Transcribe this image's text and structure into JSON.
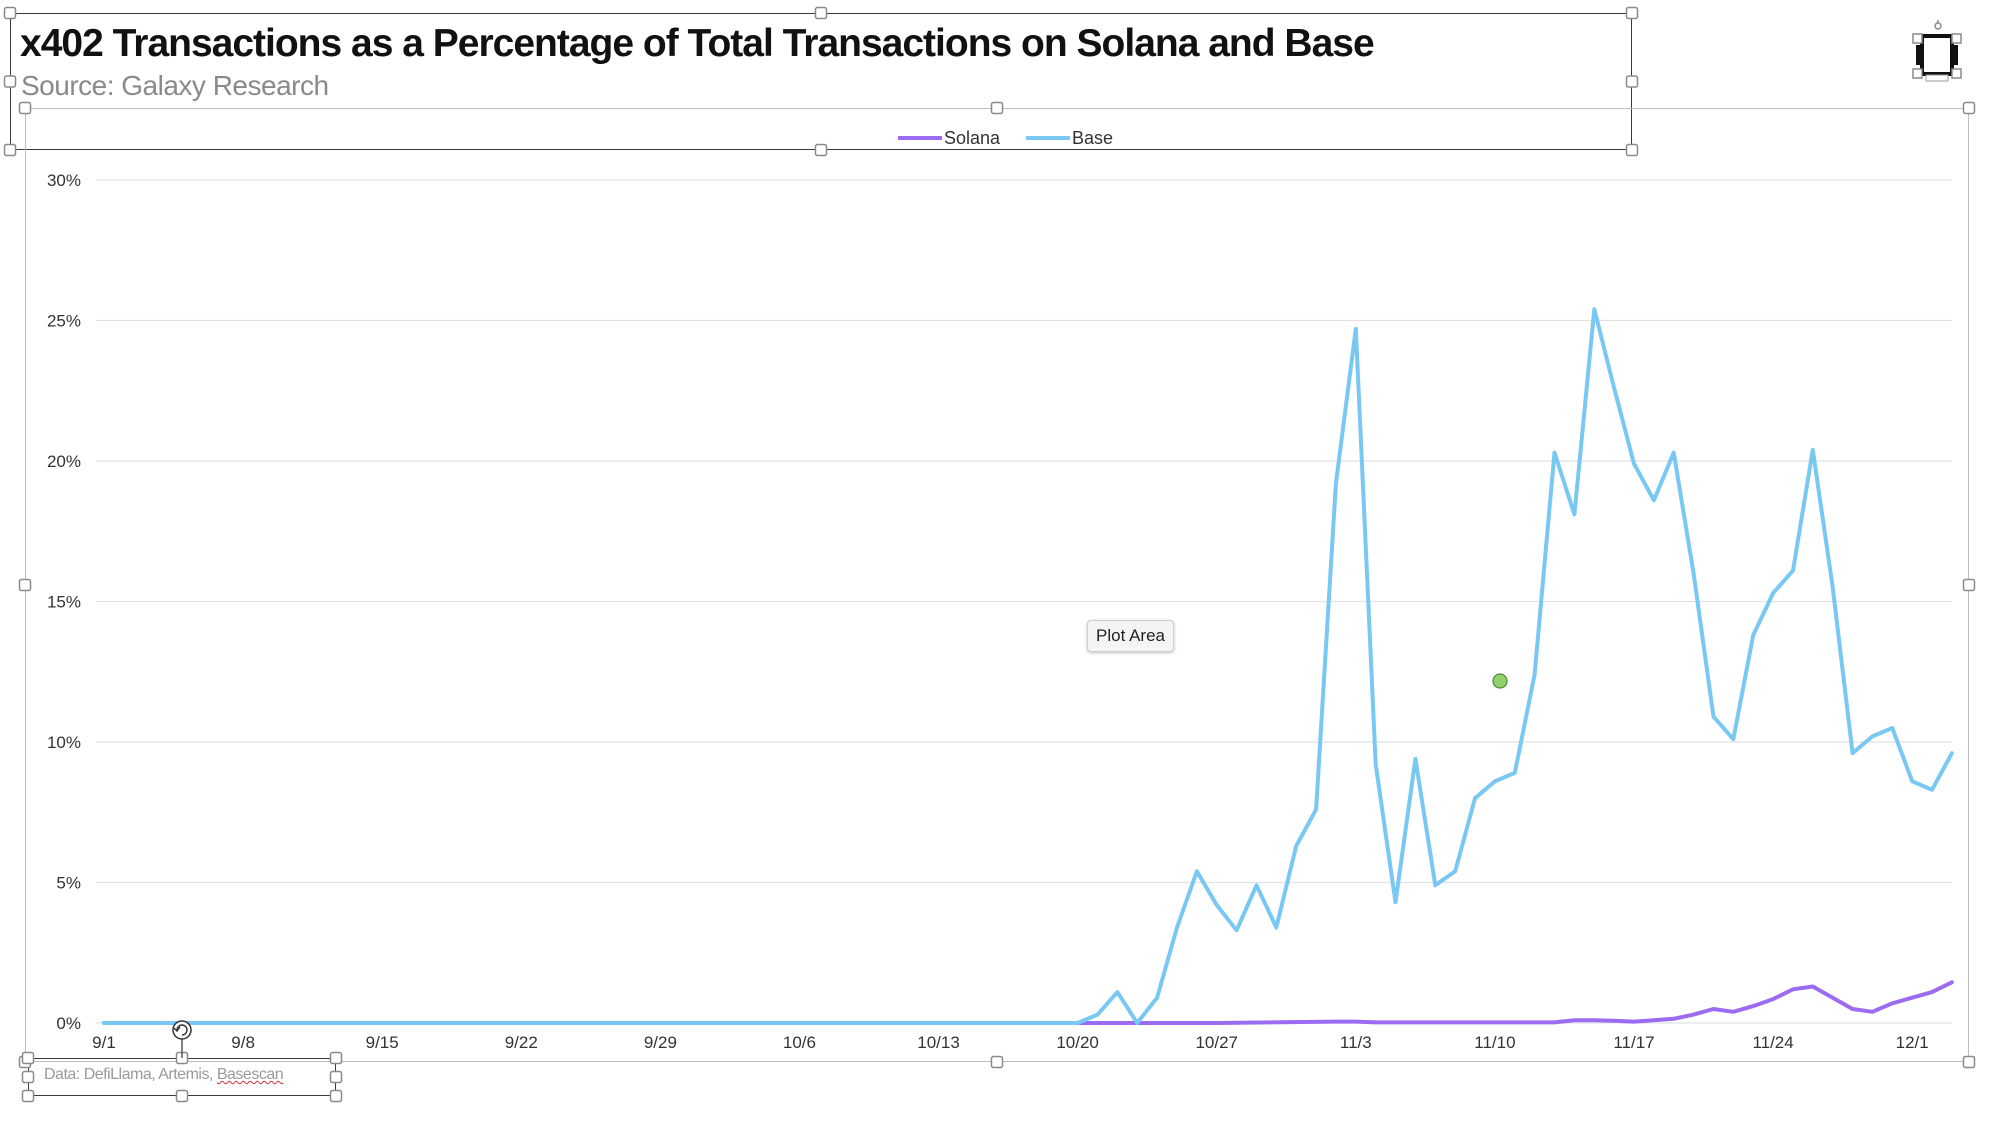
{
  "header": {
    "title": "x402 Transactions as a Percentage of Total Transactions on Solana and Base",
    "subtitle": "Source: Galaxy Research"
  },
  "footnote": {
    "prefix": "Data: DefiLlama, Artemis, ",
    "underlined": "Basescan"
  },
  "tooltip": {
    "label": "Plot Area"
  },
  "colors": {
    "solana": "#9b6cf2",
    "base": "#79c8f4",
    "grid": "#e2e2e2",
    "axis_text": "#333333",
    "selection_dot": "#8fd16b"
  },
  "chart_data": {
    "type": "line",
    "x_start": "9/1",
    "x_end": "12/3",
    "x_ticks": [
      "9/1",
      "9/8",
      "9/15",
      "9/22",
      "9/29",
      "10/6",
      "10/13",
      "10/20",
      "10/27",
      "11/3",
      "11/10",
      "11/17",
      "11/24",
      "12/1"
    ],
    "y_ticks": [
      "0%",
      "5%",
      "10%",
      "15%",
      "20%",
      "25%",
      "30%"
    ],
    "ylim": [
      0,
      30
    ],
    "y_unit": "%",
    "legend": "top-center",
    "grid": "horizontal",
    "title": "",
    "xlabel": "",
    "ylabel": "",
    "series": [
      {
        "name": "Solana",
        "color": "#9b6cf2",
        "points": [
          [
            "9/1",
            0
          ],
          [
            "10/20",
            0
          ],
          [
            "10/27",
            0
          ],
          [
            "11/2",
            0.05
          ],
          [
            "11/3",
            0.05
          ],
          [
            "11/4",
            0.02
          ],
          [
            "11/10",
            0.02
          ],
          [
            "11/13",
            0.02
          ],
          [
            "11/14",
            0.1
          ],
          [
            "11/15",
            0.1
          ],
          [
            "11/16",
            0.08
          ],
          [
            "11/17",
            0.05
          ],
          [
            "11/18",
            0.1
          ],
          [
            "11/19",
            0.15
          ],
          [
            "11/20",
            0.3
          ],
          [
            "11/21",
            0.5
          ],
          [
            "11/22",
            0.4
          ],
          [
            "11/23",
            0.6
          ],
          [
            "11/24",
            0.85
          ],
          [
            "11/25",
            1.2
          ],
          [
            "11/26",
            1.3
          ],
          [
            "11/27",
            0.9
          ],
          [
            "11/28",
            0.5
          ],
          [
            "11/29",
            0.4
          ],
          [
            "11/30",
            0.7
          ],
          [
            "12/1",
            0.9
          ],
          [
            "12/2",
            1.1
          ],
          [
            "12/3",
            1.45
          ]
        ]
      },
      {
        "name": "Base",
        "color": "#79c8f4",
        "points": [
          [
            "9/1",
            0
          ],
          [
            "10/20",
            0
          ],
          [
            "10/21",
            0.3
          ],
          [
            "10/22",
            1.1
          ],
          [
            "10/23",
            0
          ],
          [
            "10/24",
            0.9
          ],
          [
            "10/25",
            3.4
          ],
          [
            "10/26",
            5.4
          ],
          [
            "10/27",
            4.2
          ],
          [
            "10/28",
            3.3
          ],
          [
            "10/29",
            4.9
          ],
          [
            "10/30",
            3.4
          ],
          [
            "10/31",
            6.3
          ],
          [
            "11/1",
            7.6
          ],
          [
            "11/2",
            19.2
          ],
          [
            "11/3",
            24.7
          ],
          [
            "11/4",
            9.2
          ],
          [
            "11/5",
            4.3
          ],
          [
            "11/6",
            9.4
          ],
          [
            "11/7",
            4.9
          ],
          [
            "11/8",
            5.4
          ],
          [
            "11/9",
            8.0
          ],
          [
            "11/10",
            8.6
          ],
          [
            "11/11",
            8.9
          ],
          [
            "11/12",
            12.4
          ],
          [
            "11/13",
            20.3
          ],
          [
            "11/14",
            18.1
          ],
          [
            "11/15",
            25.4
          ],
          [
            "11/16",
            22.6
          ],
          [
            "11/17",
            19.9
          ],
          [
            "11/18",
            18.6
          ],
          [
            "11/19",
            20.3
          ],
          [
            "11/20",
            16.0
          ],
          [
            "11/21",
            10.9
          ],
          [
            "11/22",
            10.1
          ],
          [
            "11/23",
            13.8
          ],
          [
            "11/24",
            15.3
          ],
          [
            "11/25",
            16.1
          ],
          [
            "11/26",
            20.4
          ],
          [
            "11/27",
            15.5
          ],
          [
            "11/28",
            9.6
          ],
          [
            "11/29",
            10.2
          ],
          [
            "11/30",
            10.5
          ],
          [
            "12/1",
            8.6
          ],
          [
            "12/2",
            8.3
          ],
          [
            "12/3",
            9.6
          ]
        ]
      }
    ]
  }
}
